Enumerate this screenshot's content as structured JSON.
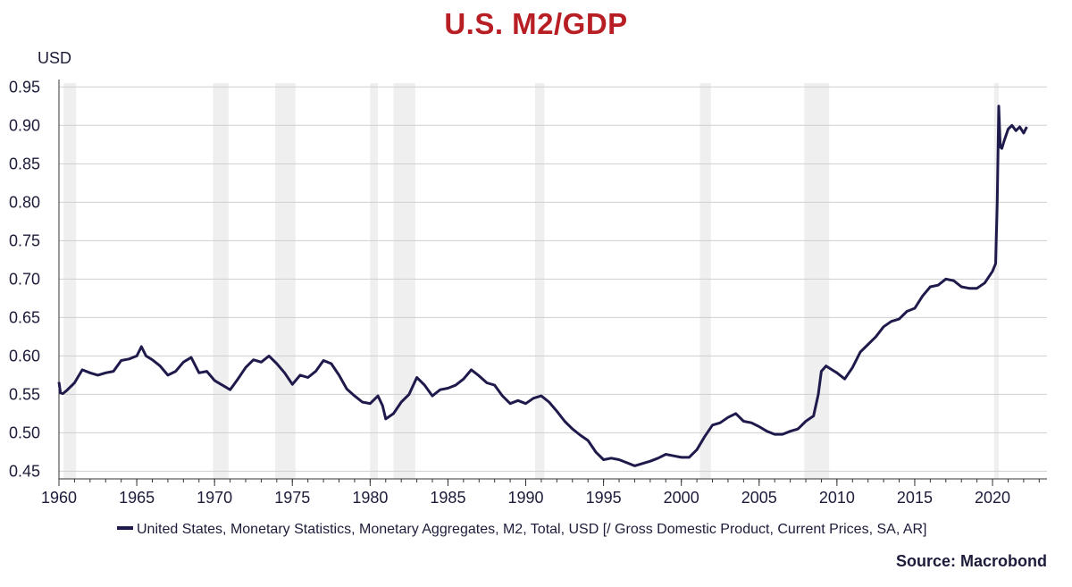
{
  "chart_data": {
    "type": "line",
    "title": "U.S. M2/GDP",
    "ylabel": "USD",
    "xlabel": "",
    "xlim": [
      1960,
      2023.5
    ],
    "ylim": [
      0.44,
      0.955
    ],
    "yticks": [
      "0.95",
      "0.90",
      "0.85",
      "0.80",
      "0.75",
      "0.70",
      "0.65",
      "0.60",
      "0.55",
      "0.50",
      "0.45"
    ],
    "xticks": [
      "1960",
      "1965",
      "1970",
      "1975",
      "1980",
      "1985",
      "1990",
      "1995",
      "2000",
      "2005",
      "2010",
      "2015",
      "2020"
    ],
    "grid": "horizontal",
    "legend_position": "bottom",
    "recessions": [
      [
        1960.3,
        1961.1
      ],
      [
        1969.9,
        1970.9
      ],
      [
        1973.9,
        1975.2
      ],
      [
        1980.0,
        1980.5
      ],
      [
        1981.5,
        1982.9
      ],
      [
        1990.6,
        1991.2
      ],
      [
        2001.2,
        2001.9
      ],
      [
        2007.9,
        2009.5
      ],
      [
        2020.1,
        2020.4
      ]
    ],
    "series": [
      {
        "name": "United States, Monetary Statistics, Monetary Aggregates, M2, Total, USD [/ Gross Domestic Product, Current Prices, SA, AR]",
        "color": "#1f1a4c",
        "x": [
          1960.0,
          1960.1,
          1960.25,
          1960.5,
          1961.0,
          1961.5,
          1962.0,
          1962.5,
          1963.0,
          1963.5,
          1964.0,
          1964.5,
          1965.0,
          1965.3,
          1965.6,
          1966.0,
          1966.5,
          1967.0,
          1967.5,
          1968.0,
          1968.5,
          1969.0,
          1969.5,
          1970.0,
          1970.5,
          1971.0,
          1971.5,
          1972.0,
          1972.5,
          1973.0,
          1973.5,
          1974.0,
          1974.5,
          1975.0,
          1975.5,
          1976.0,
          1976.5,
          1977.0,
          1977.5,
          1978.0,
          1978.5,
          1979.0,
          1979.5,
          1980.0,
          1980.5,
          1980.8,
          1981.0,
          1981.5,
          1982.0,
          1982.5,
          1983.0,
          1983.5,
          1984.0,
          1984.5,
          1985.0,
          1985.5,
          1986.0,
          1986.5,
          1987.0,
          1987.5,
          1988.0,
          1988.5,
          1989.0,
          1989.5,
          1990.0,
          1990.5,
          1991.0,
          1991.5,
          1992.0,
          1992.5,
          1993.0,
          1993.5,
          1994.0,
          1994.5,
          1995.0,
          1995.5,
          1996.0,
          1996.5,
          1997.0,
          1997.5,
          1998.0,
          1998.5,
          1999.0,
          1999.5,
          2000.0,
          2000.5,
          2001.0,
          2001.5,
          2002.0,
          2002.5,
          2003.0,
          2003.5,
          2004.0,
          2004.5,
          2005.0,
          2005.5,
          2006.0,
          2006.5,
          2007.0,
          2007.5,
          2008.0,
          2008.5,
          2008.8,
          2009.0,
          2009.3,
          2009.6,
          2010.0,
          2010.5,
          2011.0,
          2011.5,
          2012.0,
          2012.5,
          2013.0,
          2013.5,
          2014.0,
          2014.5,
          2015.0,
          2015.5,
          2016.0,
          2016.5,
          2017.0,
          2017.5,
          2018.0,
          2018.5,
          2019.0,
          2019.5,
          2020.0,
          2020.2,
          2020.3,
          2020.4,
          2020.5,
          2020.6,
          2020.75,
          2021.0,
          2021.25,
          2021.5,
          2021.75,
          2022.0,
          2022.2
        ],
        "values": [
          0.566,
          0.552,
          0.551,
          0.555,
          0.565,
          0.582,
          0.578,
          0.575,
          0.578,
          0.58,
          0.594,
          0.596,
          0.6,
          0.612,
          0.6,
          0.595,
          0.587,
          0.575,
          0.58,
          0.592,
          0.598,
          0.578,
          0.58,
          0.568,
          0.562,
          0.556,
          0.57,
          0.585,
          0.595,
          0.592,
          0.6,
          0.59,
          0.578,
          0.563,
          0.575,
          0.572,
          0.58,
          0.594,
          0.59,
          0.575,
          0.557,
          0.548,
          0.54,
          0.538,
          0.548,
          0.535,
          0.518,
          0.525,
          0.54,
          0.55,
          0.572,
          0.562,
          0.548,
          0.556,
          0.558,
          0.562,
          0.57,
          0.582,
          0.574,
          0.565,
          0.562,
          0.548,
          0.538,
          0.542,
          0.538,
          0.545,
          0.548,
          0.54,
          0.528,
          0.515,
          0.505,
          0.497,
          0.49,
          0.475,
          0.465,
          0.467,
          0.465,
          0.461,
          0.457,
          0.46,
          0.463,
          0.467,
          0.472,
          0.47,
          0.468,
          0.468,
          0.478,
          0.495,
          0.51,
          0.513,
          0.52,
          0.525,
          0.515,
          0.513,
          0.508,
          0.502,
          0.498,
          0.498,
          0.502,
          0.505,
          0.515,
          0.522,
          0.55,
          0.58,
          0.587,
          0.583,
          0.578,
          0.57,
          0.585,
          0.605,
          0.615,
          0.625,
          0.638,
          0.645,
          0.648,
          0.658,
          0.662,
          0.678,
          0.69,
          0.692,
          0.7,
          0.698,
          0.69,
          0.688,
          0.688,
          0.695,
          0.71,
          0.72,
          0.8,
          0.925,
          0.872,
          0.87,
          0.88,
          0.895,
          0.9,
          0.893,
          0.898,
          0.89,
          0.898
        ]
      }
    ]
  },
  "source": "Source: Macrobond",
  "colors": {
    "title": "#b81f24",
    "line": "#1f1a4c",
    "grid": "#cfcfcf",
    "recession": "#efefef",
    "text": "#1c1c3a"
  }
}
